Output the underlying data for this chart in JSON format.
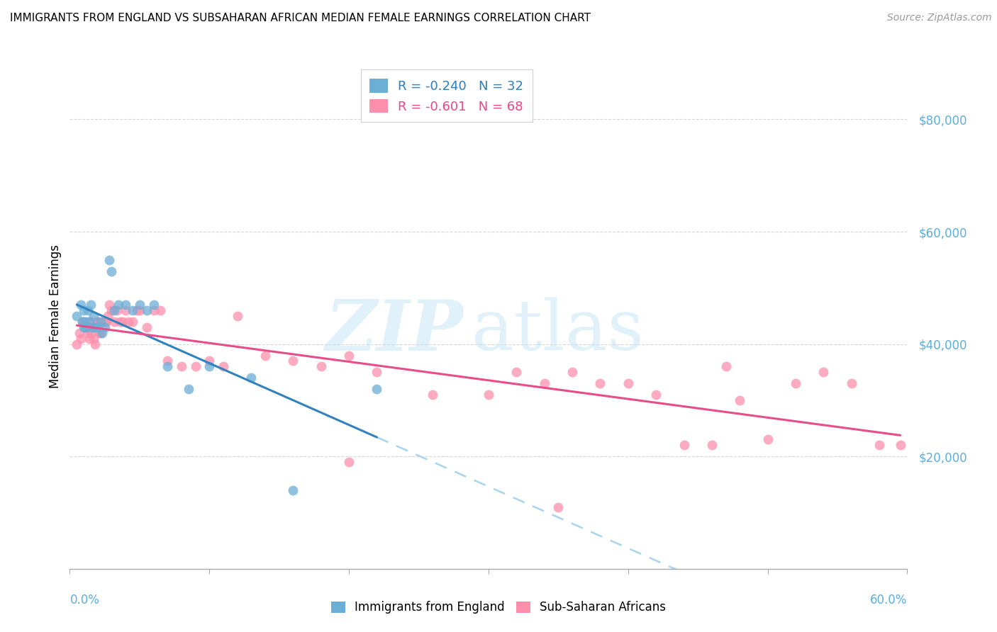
{
  "title": "IMMIGRANTS FROM ENGLAND VS SUBSAHARAN AFRICAN MEDIAN FEMALE EARNINGS CORRELATION CHART",
  "source": "Source: ZipAtlas.com",
  "ylabel": "Median Female Earnings",
  "yticks": [
    0,
    20000,
    40000,
    60000,
    80000
  ],
  "ytick_labels": [
    "",
    "$20,000",
    "$40,000",
    "$60,000",
    "$80,000"
  ],
  "xlim": [
    0.0,
    0.6
  ],
  "ylim": [
    0,
    90000
  ],
  "england_color": "#6baed6",
  "africa_color": "#fc8fac",
  "england_line_color": "#3182bd",
  "africa_line_color": "#e84d8a",
  "dashed_line_color": "#a8d4f0",
  "england_R": -0.24,
  "england_N": 32,
  "africa_R": -0.601,
  "africa_N": 68,
  "england_scatter_x": [
    0.005,
    0.008,
    0.009,
    0.01,
    0.01,
    0.011,
    0.012,
    0.013,
    0.014,
    0.015,
    0.016,
    0.017,
    0.018,
    0.02,
    0.022,
    0.023,
    0.025,
    0.028,
    0.03,
    0.032,
    0.035,
    0.04,
    0.045,
    0.05,
    0.055,
    0.06,
    0.07,
    0.085,
    0.1,
    0.13,
    0.16,
    0.22
  ],
  "england_scatter_y": [
    45000,
    47000,
    44000,
    43000,
    46000,
    44000,
    43000,
    46000,
    44000,
    47000,
    43000,
    45000,
    43000,
    43000,
    44000,
    42000,
    43000,
    55000,
    53000,
    46000,
    47000,
    47000,
    46000,
    47000,
    46000,
    47000,
    36000,
    32000,
    36000,
    34000,
    14000,
    32000
  ],
  "africa_scatter_x": [
    0.005,
    0.007,
    0.008,
    0.009,
    0.01,
    0.011,
    0.012,
    0.013,
    0.013,
    0.014,
    0.015,
    0.015,
    0.016,
    0.017,
    0.018,
    0.019,
    0.02,
    0.021,
    0.022,
    0.023,
    0.025,
    0.026,
    0.027,
    0.028,
    0.03,
    0.032,
    0.034,
    0.036,
    0.038,
    0.04,
    0.042,
    0.045,
    0.048,
    0.05,
    0.055,
    0.06,
    0.065,
    0.07,
    0.08,
    0.09,
    0.1,
    0.11,
    0.12,
    0.14,
    0.16,
    0.18,
    0.2,
    0.22,
    0.26,
    0.3,
    0.32,
    0.34,
    0.36,
    0.38,
    0.4,
    0.42,
    0.44,
    0.46,
    0.48,
    0.5,
    0.52,
    0.54,
    0.56,
    0.58,
    0.595,
    0.2,
    0.35,
    0.47
  ],
  "africa_scatter_y": [
    40000,
    42000,
    41000,
    44000,
    44000,
    43000,
    43000,
    42000,
    44000,
    41000,
    44000,
    42000,
    43000,
    41000,
    40000,
    44000,
    44000,
    42000,
    42000,
    44000,
    44000,
    44000,
    45000,
    47000,
    46000,
    44000,
    46000,
    44000,
    44000,
    46000,
    44000,
    44000,
    46000,
    46000,
    43000,
    46000,
    46000,
    37000,
    36000,
    36000,
    37000,
    36000,
    45000,
    38000,
    37000,
    36000,
    38000,
    35000,
    31000,
    31000,
    35000,
    33000,
    35000,
    33000,
    33000,
    31000,
    22000,
    22000,
    30000,
    23000,
    33000,
    35000,
    33000,
    22000,
    22000,
    19000,
    11000,
    36000
  ]
}
